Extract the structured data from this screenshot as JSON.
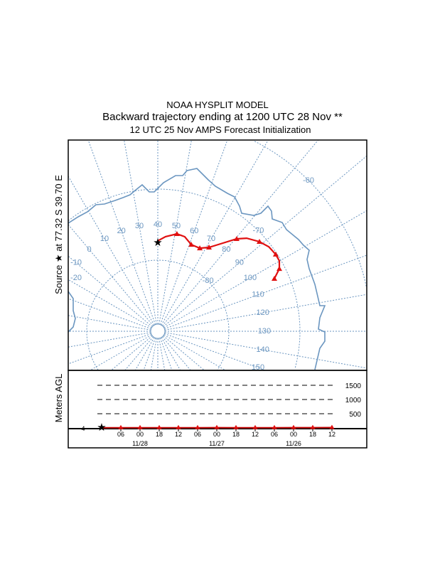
{
  "title": {
    "line1": "NOAA HYSPLIT MODEL",
    "line2": "Backward trajectory ending at 1200 UTC 28 Nov **",
    "line3": "12 UTC 25 Nov    AMPS  Forecast Initialization"
  },
  "map": {
    "source_label": "Source ★ at  77.32 S  39.70 E",
    "source": {
      "lat": -77.32,
      "lon": 39.7
    },
    "projection": "polar stereographic (south pole)",
    "meridian_labels": [
      "-20",
      "-10",
      "0",
      "10",
      "20",
      "30",
      "40",
      "50",
      "60",
      "70",
      "80",
      "90",
      "100",
      "110",
      "120",
      "130",
      "140",
      "150"
    ],
    "parallel_labels": [
      "-80",
      "-70",
      "-60"
    ],
    "colors": {
      "grid": "#6b96c0",
      "coastline": "#6b96c0",
      "trajectory": "#e01010"
    },
    "trajectory": [
      {
        "lat": -77.32,
        "lon": 39.7
      },
      {
        "lat": -76.65,
        "lon": 44.7
      },
      {
        "lat": -76.04,
        "lon": 51.1
      },
      {
        "lat": -76.17,
        "lon": 55.9
      },
      {
        "lat": -76.93,
        "lon": 61.1
      },
      {
        "lat": -76.9,
        "lon": 66.8
      },
      {
        "lat": -76.18,
        "lon": 71.4
      },
      {
        "lat": -75.13,
        "lon": 74.9
      },
      {
        "lat": -72.91,
        "lon": 80.5
      },
      {
        "lat": -71.9,
        "lon": 83.7
      },
      {
        "lat": -70.94,
        "lon": 88.6
      },
      {
        "lat": -70.38,
        "lon": 92.7
      },
      {
        "lat": -70.2,
        "lon": 96.9
      },
      {
        "lat": -70.24,
        "lon": 99.9
      },
      {
        "lat": -70.77,
        "lon": 102.8
      },
      {
        "lat": -72.01,
        "lon": 105.7
      }
    ],
    "trajectory_marker_indices": [
      2,
      4,
      5,
      6,
      8,
      10,
      12,
      14,
      15
    ]
  },
  "height_panel": {
    "ylabel": "Meters AGL",
    "start_height_label": "4",
    "level_labels": [
      "1500",
      "1000",
      "500"
    ],
    "levels": [
      1500,
      1000,
      500
    ],
    "hour_labels": [
      "06",
      "00",
      "18",
      "12",
      "06",
      "00",
      "18",
      "12",
      "06",
      "00",
      "18",
      "12"
    ],
    "date_labels": [
      "11/28",
      "11/27",
      "11/26"
    ],
    "heights_m": [
      4,
      5,
      6,
      5,
      6,
      8,
      10,
      8,
      6,
      7,
      9,
      10,
      12
    ]
  }
}
